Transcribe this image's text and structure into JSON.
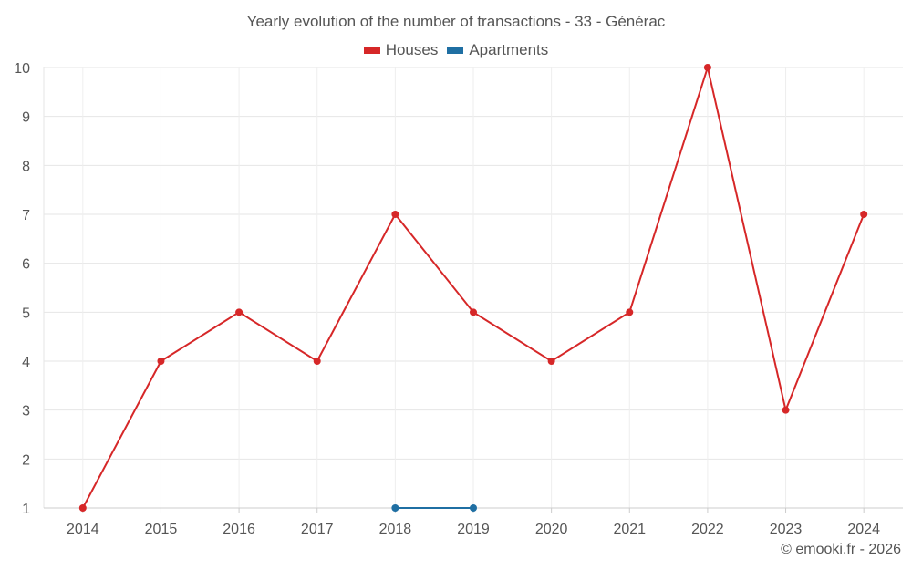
{
  "chart_data": {
    "type": "line",
    "title": "Yearly evolution of the number of transactions - 33 - Générac",
    "categories": [
      "2014",
      "2015",
      "2016",
      "2017",
      "2018",
      "2019",
      "2020",
      "2021",
      "2022",
      "2023",
      "2024"
    ],
    "series": [
      {
        "name": "Houses",
        "color": "#d62728",
        "values": [
          1,
          4,
          5,
          4,
          7,
          5,
          4,
          5,
          10,
          3,
          7
        ]
      },
      {
        "name": "Apartments",
        "color": "#1f6fa3",
        "values": [
          null,
          null,
          null,
          null,
          1,
          1,
          null,
          null,
          null,
          null,
          null
        ]
      }
    ],
    "yticks": [
      "1",
      "2",
      "3",
      "4",
      "5",
      "6",
      "7",
      "8",
      "9",
      "10"
    ],
    "ylim": [
      1,
      10
    ],
    "xlabel": "",
    "ylabel": "",
    "grid": true,
    "legend_position": "top-center"
  },
  "credit": "© emooki.fr - 2026"
}
